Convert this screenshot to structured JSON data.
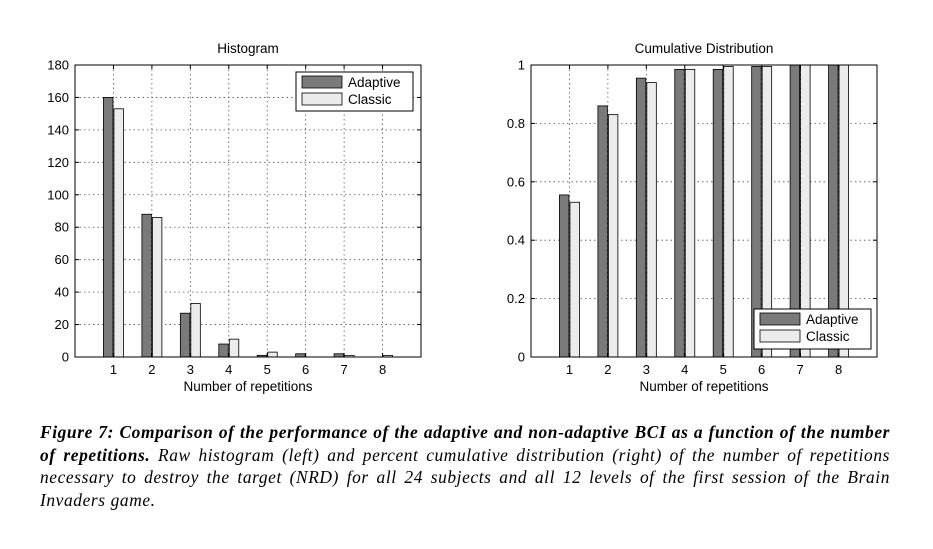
{
  "chart_data": [
    {
      "type": "bar",
      "title": "Histogram",
      "xlabel": "Number of repetitions",
      "ylabel": "",
      "categories": [
        "1",
        "2",
        "3",
        "4",
        "5",
        "6",
        "7",
        "8"
      ],
      "series": [
        {
          "name": "Adaptive",
          "values": [
            160,
            88,
            27,
            8,
            1,
            2,
            2,
            0
          ],
          "color": "#7a7a7a"
        },
        {
          "name": "Classic",
          "values": [
            153,
            86,
            33,
            11,
            3,
            0,
            1,
            1
          ],
          "color": "#ececec"
        }
      ],
      "ylim": [
        0,
        180
      ],
      "xlim": [
        0,
        9
      ],
      "yticks": [
        0,
        20,
        40,
        60,
        80,
        100,
        120,
        140,
        160,
        180
      ],
      "ytick_labels": [
        "0",
        "20",
        "40",
        "60",
        "80",
        "100",
        "120",
        "140",
        "160",
        "180"
      ],
      "grid": true,
      "legend": "top-right"
    },
    {
      "type": "bar",
      "title": "Cumulative Distribution",
      "xlabel": "Number of repetitions",
      "ylabel": "",
      "categories": [
        "1",
        "2",
        "3",
        "4",
        "5",
        "6",
        "7",
        "8"
      ],
      "series": [
        {
          "name": "Adaptive",
          "values": [
            0.555,
            0.86,
            0.955,
            0.985,
            0.985,
            0.995,
            1.0,
            1.0
          ],
          "color": "#7a7a7a"
        },
        {
          "name": "Classic",
          "values": [
            0.53,
            0.83,
            0.94,
            0.985,
            0.995,
            0.995,
            1.0,
            1.0
          ],
          "color": "#ececec"
        }
      ],
      "ylim": [
        0,
        1
      ],
      "xlim": [
        0,
        9
      ],
      "yticks": [
        0,
        0.2,
        0.4,
        0.6,
        0.8,
        1
      ],
      "ytick_labels": [
        "0",
        "0.2",
        "0.4",
        "0.6",
        "0.8",
        "1"
      ],
      "grid": true,
      "legend": "bottom-right"
    }
  ],
  "caption": {
    "lead": "Figure 7: Comparison of the performance of the adaptive and non-adaptive BCI as a function of the number of repetitions.",
    "body": " Raw histogram (left) and percent cumulative distribution (right) of the number of repetitions necessary to destroy the target (NRD) for all 24 subjects and all 12 levels of the first session of the Brain Invaders game."
  }
}
